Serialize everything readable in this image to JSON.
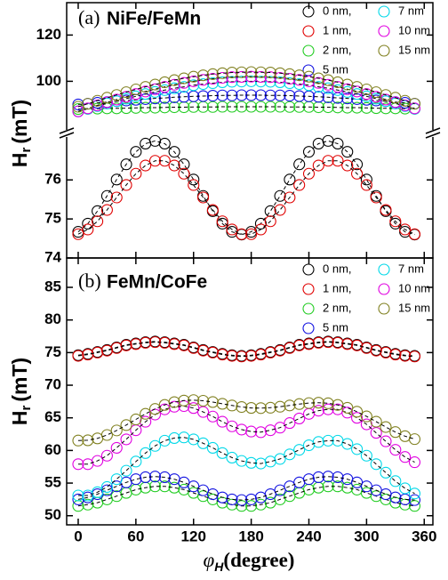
{
  "chart_data": [
    {
      "type": "scatter",
      "panel_label": "(a)",
      "title": "NiFe/FeMn",
      "y_label": "H",
      "y_label_sub": "r",
      "y_label_unit": "(mT)",
      "x": [
        0,
        10,
        20,
        30,
        40,
        50,
        60,
        70,
        80,
        90,
        100,
        110,
        120,
        130,
        140,
        150,
        160,
        170,
        180,
        190,
        200,
        210,
        220,
        230,
        240,
        250,
        260,
        270,
        280,
        290,
        300,
        310,
        320,
        330,
        340,
        350
      ],
      "xlim": [
        -12,
        369
      ],
      "xticks": [
        0,
        60,
        120,
        180,
        240,
        300,
        360
      ],
      "ylim": [
        79,
        134
      ],
      "yticks": [
        100,
        120
      ],
      "y2lim": [
        74,
        77.1
      ],
      "y2ticks": [
        74,
        75,
        76
      ],
      "series": [
        {
          "name": "0 nm,",
          "color": "#000000",
          "axis": "y2",
          "values": [
            74.67,
            74.88,
            75.2,
            75.59,
            76.01,
            76.4,
            76.72,
            76.93,
            77,
            76.93,
            76.72,
            76.4,
            76.01,
            75.59,
            75.2,
            74.88,
            74.67,
            74.6,
            74.67,
            74.88,
            75.2,
            75.59,
            76.01,
            76.4,
            76.72,
            76.93,
            77,
            76.93,
            76.72,
            76.4,
            76.01,
            75.59,
            75.2,
            74.88,
            74.67,
            74.6
          ]
        },
        {
          "name": "1 nm,",
          "color": "#e00000",
          "axis": "y2",
          "values": [
            74.61,
            74.73,
            74.94,
            75.23,
            75.55,
            75.87,
            76.16,
            76.37,
            76.49,
            76.49,
            76.37,
            76.16,
            75.87,
            75.55,
            75.23,
            74.94,
            74.73,
            74.61,
            74.61,
            74.73,
            74.94,
            75.23,
            75.55,
            75.87,
            76.16,
            76.37,
            76.49,
            76.49,
            76.37,
            76.16,
            75.87,
            75.55,
            75.23,
            74.94,
            74.73,
            74.61
          ]
        },
        {
          "name": "2 nm,",
          "color": "#22cc22",
          "values": [
            88,
            88.1,
            88.2,
            88.3,
            88.3,
            88.4,
            88.5,
            88.6,
            88.6,
            88.7,
            88.8,
            88.8,
            88.9,
            88.9,
            88.9,
            89,
            89,
            89,
            89,
            89,
            89,
            89,
            88.9,
            88.9,
            88.9,
            88.8,
            88.8,
            88.7,
            88.6,
            88.6,
            88.5,
            88.4,
            88.3,
            88.3,
            88.2,
            88.1
          ]
        },
        {
          "name": "5 nm",
          "color": "#1010e0",
          "values": [
            90,
            90.3,
            90.7,
            91,
            91.4,
            91.7,
            92,
            92.3,
            92.6,
            92.8,
            93.1,
            93.3,
            93.5,
            93.6,
            93.8,
            93.9,
            93.9,
            94,
            94,
            94,
            93.9,
            93.9,
            93.8,
            93.6,
            93.5,
            93.3,
            93.1,
            92.8,
            92.6,
            92.3,
            92,
            91.7,
            91.4,
            91,
            90.7,
            90.3
          ]
        },
        {
          "name": "7 nm",
          "color": "#00d8e8",
          "values": [
            87,
            88.1,
            89.3,
            90.4,
            91.4,
            92.5,
            93.5,
            94.5,
            95.4,
            96.2,
            97,
            97.6,
            98.3,
            98.8,
            99.2,
            99.6,
            99.8,
            99.9,
            100,
            99.9,
            99.8,
            99.6,
            99.2,
            98.8,
            98.3,
            97.6,
            97,
            96.2,
            95.4,
            94.5,
            93.5,
            92.5,
            91.4,
            90.4,
            89.3,
            88.1
          ]
        },
        {
          "name": "10 nm",
          "color": "#e000e0",
          "values": [
            87,
            88.3,
            89.6,
            90.9,
            92.1,
            93.3,
            94.5,
            95.6,
            96.6,
            97.6,
            98.5,
            99.3,
            100,
            100.6,
            101.1,
            101.5,
            101.8,
            101.9,
            102,
            101.9,
            101.8,
            101.5,
            101.1,
            100.6,
            100,
            99.3,
            98.5,
            97.6,
            96.6,
            95.6,
            94.5,
            93.3,
            92.1,
            90.9,
            89.6,
            88.3
          ]
        },
        {
          "name": "15 nm",
          "color": "#808020",
          "values": [
            89,
            90.3,
            91.6,
            92.9,
            94.1,
            95.3,
            96.5,
            97.6,
            98.6,
            99.6,
            100.5,
            101.3,
            102,
            102.6,
            103.1,
            103.5,
            103.8,
            103.9,
            104,
            103.9,
            103.8,
            103.5,
            103.1,
            102.6,
            102,
            101.3,
            100.5,
            99.6,
            98.6,
            97.6,
            96.5,
            95.3,
            94.1,
            92.9,
            91.6,
            90.3
          ]
        }
      ]
    },
    {
      "type": "scatter",
      "panel_label": "(b)",
      "title": "FeMn/CoFe",
      "y_label": "H",
      "y_label_sub": "r",
      "y_label_unit": "(mT)",
      "x_label": "φ",
      "x_label_sub": "H",
      "x_label_unit": "(degree)",
      "x": [
        0,
        10,
        20,
        30,
        40,
        50,
        60,
        70,
        80,
        90,
        100,
        110,
        120,
        130,
        140,
        150,
        160,
        170,
        180,
        190,
        200,
        210,
        220,
        230,
        240,
        250,
        260,
        270,
        280,
        290,
        300,
        310,
        320,
        330,
        340,
        350
      ],
      "xlim": [
        -12,
        369
      ],
      "xticks": [
        0,
        60,
        120,
        180,
        240,
        300,
        360
      ],
      "ylim": [
        48.6,
        89.5
      ],
      "yticks": [
        50,
        55,
        60,
        65,
        70,
        75,
        80,
        85
      ],
      "series": [
        {
          "name": "0 nm,",
          "color": "#000000",
          "values": [
            74.6,
            74.8,
            75.1,
            75.4,
            75.8,
            76.2,
            76.4,
            76.6,
            76.7,
            76.6,
            76.4,
            76.2,
            75.8,
            75.4,
            75.1,
            74.8,
            74.6,
            74.5,
            74.6,
            74.8,
            75.1,
            75.4,
            75.8,
            76.2,
            76.4,
            76.6,
            76.7,
            76.6,
            76.4,
            76.2,
            75.8,
            75.4,
            75.1,
            74.8,
            74.6,
            74.5
          ]
        },
        {
          "name": "1 nm,",
          "color": "#e00000",
          "values": [
            74.5,
            74.7,
            75,
            75.3,
            75.7,
            76.1,
            76.3,
            76.5,
            76.6,
            76.5,
            76.3,
            76.1,
            75.7,
            75.3,
            75,
            74.7,
            74.5,
            74.4,
            74.5,
            74.7,
            75,
            75.3,
            75.7,
            76.1,
            76.3,
            76.5,
            76.6,
            76.5,
            76.3,
            76.1,
            75.7,
            75.3,
            75,
            74.7,
            74.5,
            74.4
          ]
        },
        {
          "name": "2 nm,",
          "color": "#22cc22",
          "values": [
            51.5,
            51.7,
            52,
            52.5,
            53,
            53.5,
            54,
            54.3,
            54.5,
            54.5,
            54.3,
            54,
            53.5,
            53,
            52.5,
            52,
            51.7,
            51.5,
            51.5,
            51.7,
            52,
            52.5,
            53,
            53.5,
            54,
            54.3,
            54.5,
            54.5,
            54.3,
            54,
            53.5,
            53,
            52.5,
            52,
            51.7,
            51.5
          ]
        },
        {
          "name": "5 nm",
          "color": "#1010e0",
          "values": [
            52.5,
            52.8,
            53.3,
            53.9,
            54.5,
            55.1,
            55.6,
            55.9,
            56,
            55.9,
            55.6,
            55.1,
            54.5,
            53.9,
            53.3,
            52.8,
            52.5,
            52.4,
            52.5,
            52.8,
            53.3,
            53.9,
            54.5,
            55.1,
            55.6,
            55.9,
            56,
            55.9,
            55.6,
            55.1,
            54.5,
            53.9,
            53.3,
            52.8,
            52.5,
            52.4
          ]
        },
        {
          "name": "7 nm",
          "color": "#00d8e8",
          "values": [
            53.1,
            53.1,
            53.6,
            54.4,
            55.6,
            56.9,
            58.3,
            59.6,
            60.7,
            61.5,
            61.9,
            62,
            61.7,
            61.1,
            60.4,
            59.6,
            58.9,
            58.4,
            58.1,
            58,
            58.3,
            58.7,
            59.4,
            60.1,
            60.8,
            61.3,
            61.5,
            61.5,
            61,
            60.2,
            59.2,
            57.9,
            56.6,
            55.3,
            54.2,
            53.4
          ]
        },
        {
          "name": "10 nm",
          "color": "#e000e0",
          "values": [
            57.9,
            57.9,
            58.4,
            59.2,
            60.4,
            61.7,
            63.1,
            64.4,
            65.5,
            66.3,
            66.7,
            66.8,
            66.5,
            65.9,
            65.2,
            64.4,
            63.7,
            63.2,
            62.9,
            62.8,
            63.1,
            63.5,
            64.2,
            64.9,
            65.6,
            66.1,
            66.3,
            66.3,
            65.8,
            65,
            64,
            62.7,
            61.4,
            60.1,
            59,
            58.2
          ]
        },
        {
          "name": "15 nm",
          "color": "#808020",
          "values": [
            61.52,
            61.56,
            61.85,
            62.37,
            63.07,
            63.89,
            64.76,
            65.61,
            66.36,
            66.98,
            67.41,
            67.65,
            67.72,
            67.62,
            67.42,
            67.15,
            66.89,
            66.66,
            66.52,
            66.49,
            66.55,
            66.7,
            66.9,
            67.11,
            67.26,
            67.32,
            67.23,
            66.98,
            66.54,
            65.94,
            65.22,
            64.41,
            63.59,
            62.82,
            62.19,
            61.74
          ]
        }
      ]
    }
  ]
}
